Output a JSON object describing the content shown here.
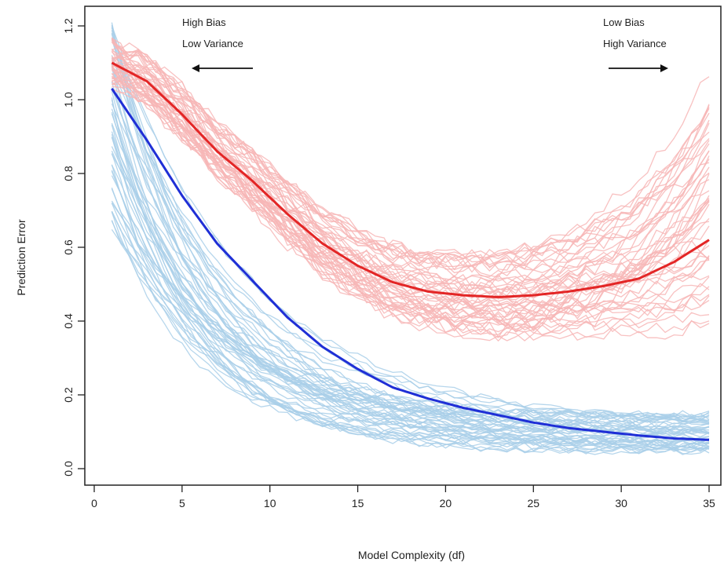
{
  "chart_data": {
    "type": "line",
    "title": "",
    "xlabel": "Model Complexity (df)",
    "ylabel": "Prediction Error",
    "xlim": [
      0,
      35
    ],
    "ylim": [
      0.0,
      1.2
    ],
    "xticks": [
      0,
      5,
      10,
      15,
      20,
      25,
      30,
      35
    ],
    "yticks": [
      0.0,
      0.2,
      0.4,
      0.6,
      0.8,
      1.0,
      1.2
    ],
    "yticks_labels": [
      "0.0",
      "0.2",
      "0.4",
      "0.6",
      "0.8",
      "1.0",
      "1.2"
    ],
    "grid": false,
    "legend": "none",
    "annotations": {
      "left": {
        "line1": "High Bias",
        "line2": "Low Variance",
        "arrow": "left"
      },
      "right": {
        "line1": "Low Bias",
        "line2": "High Variance",
        "arrow": "right"
      }
    },
    "colors": {
      "training_samples": "#a9cfe9",
      "test_samples": "#f7b6b6",
      "training_mean": "#1f2fd6",
      "test_mean": "#e32626"
    },
    "series": [
      {
        "role": "training_mean",
        "x": [
          1,
          3,
          5,
          7,
          9,
          11,
          13,
          15,
          17,
          19,
          21,
          23,
          25,
          27,
          29,
          31,
          33,
          35
        ],
        "y": [
          1.03,
          0.89,
          0.74,
          0.61,
          0.51,
          0.41,
          0.33,
          0.27,
          0.22,
          0.19,
          0.165,
          0.145,
          0.125,
          0.11,
          0.1,
          0.09,
          0.082,
          0.078
        ]
      },
      {
        "role": "test_mean",
        "x": [
          1,
          3,
          5,
          7,
          9,
          11,
          13,
          15,
          17,
          19,
          21,
          23,
          25,
          27,
          29,
          31,
          33,
          35
        ],
        "y": [
          1.1,
          1.05,
          0.96,
          0.86,
          0.78,
          0.69,
          0.61,
          0.55,
          0.505,
          0.48,
          0.47,
          0.465,
          0.47,
          0.48,
          0.495,
          0.515,
          0.56,
          0.62
        ]
      }
    ],
    "samples": {
      "count_per_group": 50,
      "training_band": {
        "x": [
          1,
          35
        ],
        "y_start": [
          0.6,
          1.2
        ],
        "y_end": [
          0.04,
          0.16
        ]
      },
      "test_band": {
        "x": [
          1,
          35
        ],
        "y_start": [
          1.0,
          1.2
        ],
        "y_end": [
          0.37,
          1.12
        ]
      }
    }
  }
}
